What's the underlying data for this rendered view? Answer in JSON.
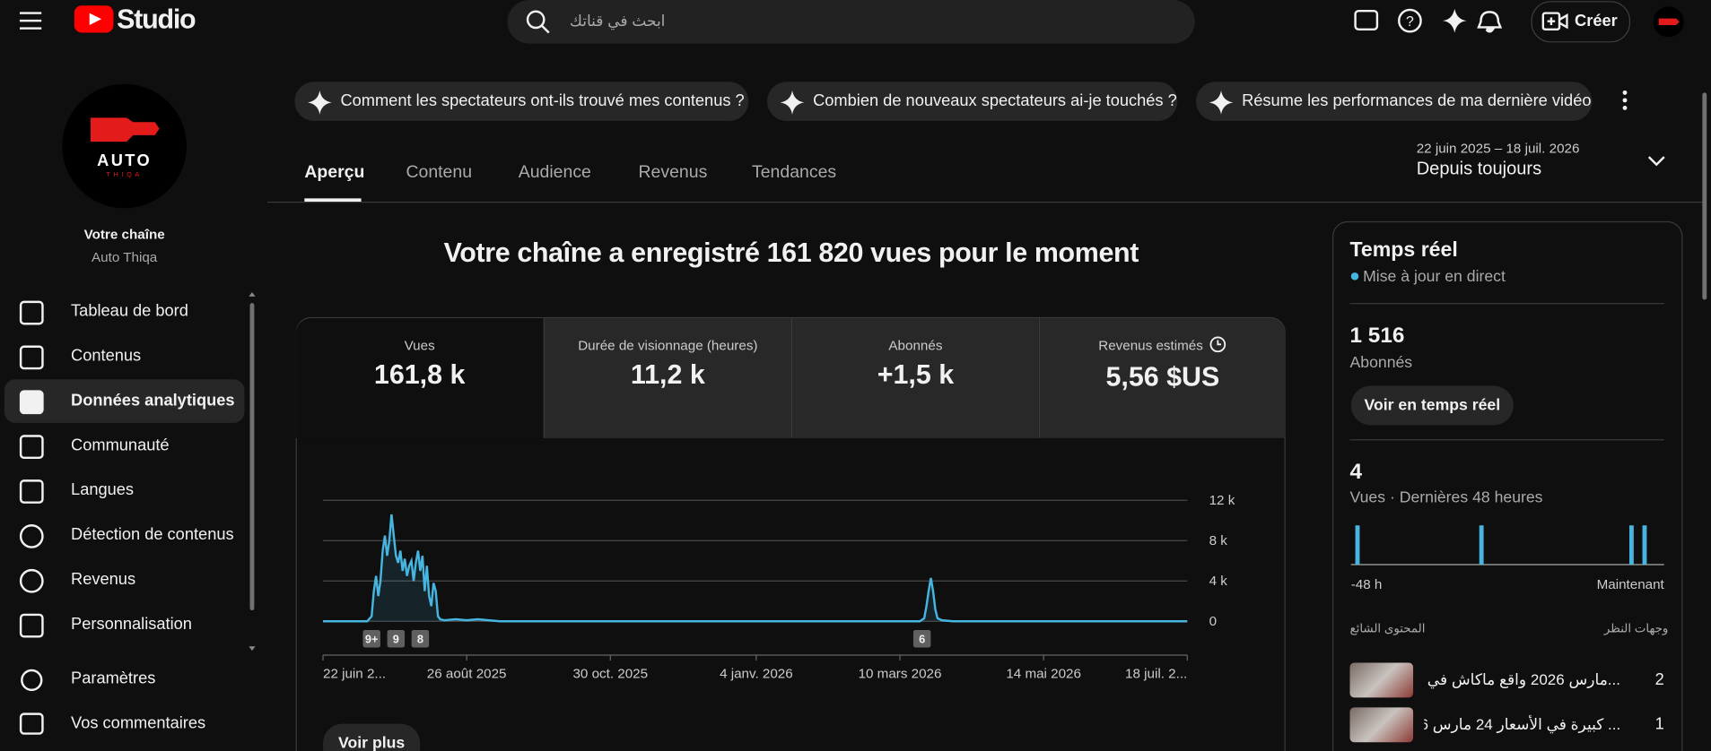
{
  "header": {
    "logo": "Studio",
    "search_placeholder": "ابحث في قناتك",
    "create": "Créer"
  },
  "sidebar": {
    "avatar": {
      "title": "AUTO",
      "subtitle": "THIQA"
    },
    "channel_label": "Votre chaîne",
    "channel_name": "Auto Thiqa",
    "nav": [
      "Tableau de bord",
      "Contenus",
      "Données analytiques",
      "Communauté",
      "Langues",
      "Détection de contenus",
      "Revenus",
      "Personnalisation"
    ],
    "footer_nav": [
      "Paramètres",
      "Vos commentaires"
    ]
  },
  "prompts": [
    "Comment les spectateurs ont-ils trouvé mes contenus ?",
    "Combien de nouveaux spectateurs ai-je touchés ?",
    "Résume les performances de ma dernière vidéo"
  ],
  "tabs": [
    "Aperçu",
    "Contenu",
    "Audience",
    "Revenus",
    "Tendances"
  ],
  "date_range": "22 juin 2025 – 18 juil. 2026",
  "period": "Depuis toujours",
  "headline": "Votre chaîne a enregistré 161 820 vues pour le moment",
  "metrics": [
    {
      "label": "Vues",
      "value": "161,8 k"
    },
    {
      "label": "Durée de visionnage (heures)",
      "value": "11,2 k"
    },
    {
      "label": "Abonnés",
      "value": "+1,5 k"
    },
    {
      "label": "Revenus estimés",
      "value": "5,56 $US"
    }
  ],
  "see_more": "Voir plus",
  "realtime": {
    "title": "Temps réel",
    "status": "Mise à jour en direct",
    "subscribers": "1 516",
    "subscribers_label": "Abonnés",
    "button": "Voir en temps réel",
    "views": "4",
    "views_label": "Vues · Dernières 48 heures",
    "table": {
      "headers": [
        "المحتوى الشائع",
        "وجهات النظر"
      ],
      "rows": [
        [
          "...مارس 2026 واقع ماكاش في الحسبان",
          "2"
        ],
        [
          "... كبيرة في الأسعار 24 مارس 2026",
          "1"
        ]
      ]
    }
  },
  "chart_data": [
    {
      "type": "line",
      "color": "#46b5e0",
      "x": [
        0,
        20,
        22,
        23,
        24,
        25,
        26,
        27,
        28,
        29,
        30,
        31,
        32,
        33,
        34,
        35,
        36,
        37,
        38,
        39,
        40,
        41,
        42,
        43,
        44,
        45,
        46,
        47,
        48,
        49,
        50,
        51,
        52,
        53,
        55,
        60,
        65,
        70,
        75,
        80,
        270,
        272,
        273,
        274,
        275,
        276,
        277,
        278,
        280,
        285,
        391
      ],
      "values": [
        0,
        0,
        500,
        3000,
        4500,
        2500,
        4000,
        7000,
        8500,
        6500,
        8000,
        10600,
        8500,
        6500,
        5800,
        7000,
        5000,
        6200,
        4500,
        5500,
        6000,
        4000,
        5800,
        7000,
        5000,
        6500,
        3000,
        5500,
        2500,
        1500,
        3800,
        3000,
        500,
        200,
        100,
        200,
        100,
        200,
        100,
        0,
        0,
        300,
        1500,
        3000,
        4300,
        3000,
        1200,
        300,
        100,
        0,
        0
      ],
      "xlim": [
        0,
        391
      ],
      "xticks": [
        {
          "value": 0,
          "label": "22 juin 2..."
        },
        {
          "value": 65,
          "label": "26 août 2025"
        },
        {
          "value": 130,
          "label": "30 oct. 2025"
        },
        {
          "value": 196,
          "label": "4 janv. 2026"
        },
        {
          "value": 261,
          "label": "10 mars 2026"
        },
        {
          "value": 326,
          "label": "14 mai 2026"
        },
        {
          "value": 391,
          "label": "18 juil. 2..."
        }
      ],
      "ylim": [
        0,
        12000
      ],
      "yticks": [
        0,
        {
          "value": 4000,
          "label": "4 k"
        },
        {
          "value": 8000,
          "label": "8 k"
        },
        {
          "value": 12000,
          "label": "12 k"
        }
      ],
      "grid": true,
      "annotations": [
        {
          "x": 22,
          "label": "9+"
        },
        {
          "x": 33,
          "label": "9"
        },
        {
          "x": 44,
          "label": "8"
        },
        {
          "x": 271,
          "label": "6"
        }
      ]
    },
    {
      "type": "bar",
      "color": "#46b5e0",
      "x": [
        -47,
        -28,
        -5,
        -3
      ],
      "values": [
        1,
        1,
        1,
        1
      ],
      "xlim": [
        -48,
        0
      ],
      "ylim": [
        0,
        1
      ],
      "xticks": [
        {
          "value": -48,
          "label": "-48 h"
        },
        {
          "value": 0,
          "label": "Maintenant"
        }
      ]
    }
  ]
}
